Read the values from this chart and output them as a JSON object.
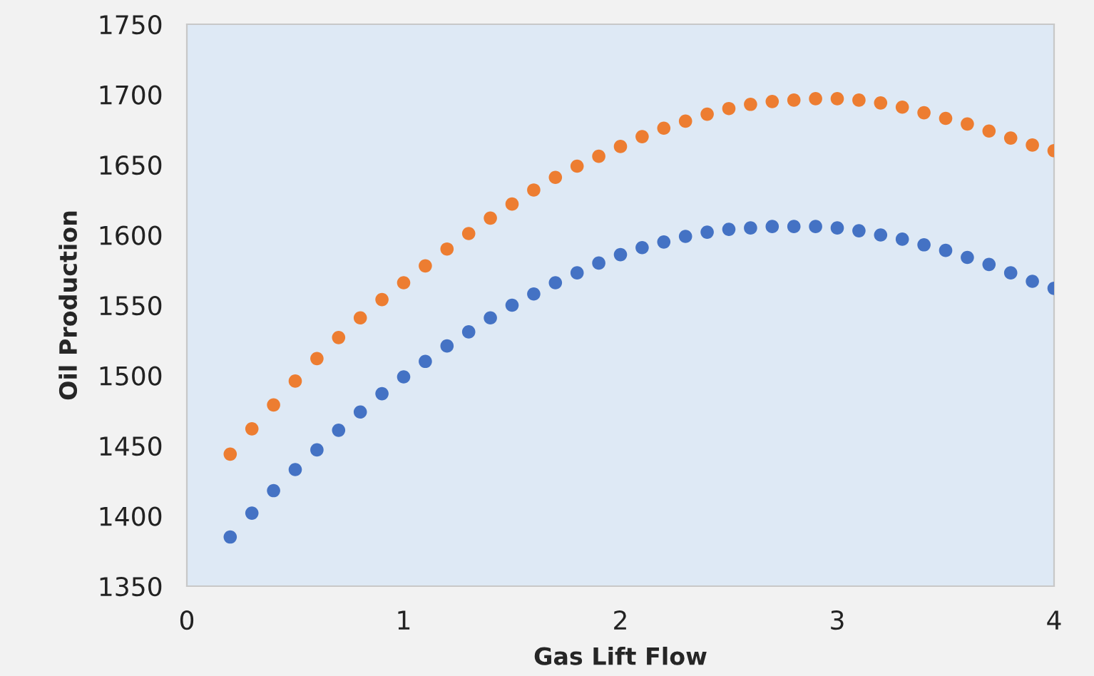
{
  "chart_data": {
    "type": "scatter",
    "xlabel": "Gas Lift Flow",
    "ylabel": "Oil Production",
    "x": [
      0.2,
      0.3,
      0.4,
      0.5,
      0.6,
      0.7,
      0.8,
      0.9,
      1.0,
      1.1,
      1.2,
      1.3,
      1.4,
      1.5,
      1.6,
      1.7,
      1.8,
      1.9,
      2.0,
      2.1,
      2.2,
      2.3,
      2.4,
      2.5,
      2.6,
      2.7,
      2.8,
      2.9,
      3.0,
      3.1,
      3.2,
      3.3,
      3.4,
      3.5,
      3.6,
      3.7,
      3.8,
      3.9,
      4.0
    ],
    "series": [
      {
        "color": "#4472c4",
        "values": [
          1385,
          1402,
          1418,
          1433,
          1447,
          1461,
          1474,
          1487,
          1499,
          1510,
          1521,
          1531,
          1541,
          1550,
          1558,
          1566,
          1573,
          1580,
          1586,
          1591,
          1595,
          1599,
          1602,
          1604,
          1605,
          1606,
          1606,
          1606,
          1605,
          1603,
          1600,
          1597,
          1593,
          1589,
          1584,
          1579,
          1573,
          1567,
          1562
        ]
      },
      {
        "color": "#ed7d31",
        "values": [
          1444,
          1462,
          1479,
          1496,
          1512,
          1527,
          1541,
          1554,
          1566,
          1578,
          1590,
          1601,
          1612,
          1622,
          1632,
          1641,
          1649,
          1656,
          1663,
          1670,
          1676,
          1681,
          1686,
          1690,
          1693,
          1695,
          1696,
          1697,
          1697,
          1696,
          1694,
          1691,
          1687,
          1683,
          1679,
          1674,
          1669,
          1664,
          1660
        ]
      }
    ],
    "xlim": [
      0,
      4
    ],
    "xticks": [
      0,
      1,
      2,
      3,
      4
    ],
    "ylim": [
      1350,
      1750
    ],
    "yticks": [
      1350,
      1400,
      1450,
      1500,
      1550,
      1600,
      1650,
      1700,
      1750
    ],
    "marker": "circle"
  }
}
